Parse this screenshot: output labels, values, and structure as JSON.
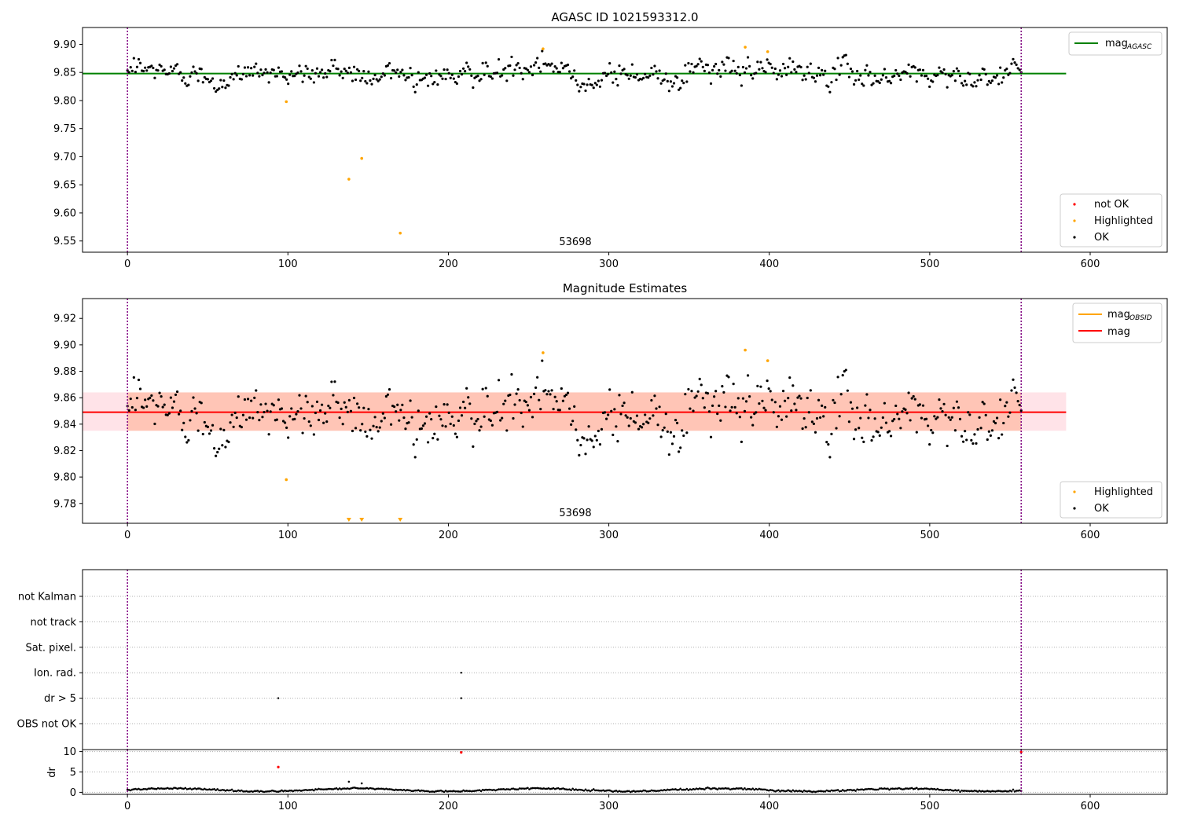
{
  "figure": {
    "chart_data": [
      {
        "type": "scatter",
        "title": "AGASC ID 1021593312.0",
        "xlim": [
          -28,
          648
        ],
        "ylim": [
          9.53,
          9.93
        ],
        "xticks": [
          0,
          100,
          200,
          300,
          400,
          500,
          600
        ],
        "xtick_labels": [
          "0",
          "100",
          "200",
          "300",
          "400",
          "500",
          "600"
        ],
        "yticks": [
          9.55,
          9.6,
          9.65,
          9.7,
          9.75,
          9.8,
          9.85,
          9.9
        ],
        "ytick_labels": [
          "9.55",
          "9.60",
          "9.65",
          "9.70",
          "9.75",
          "9.80",
          "9.85",
          "9.90"
        ],
        "vlines": [
          0,
          557
        ],
        "annotation": {
          "text": "53698",
          "x": 278,
          "y": 9.545
        },
        "hline": {
          "name": "mag_AGASC",
          "value": 9.848,
          "xrange": [
            -28,
            585
          ],
          "color": "#008000"
        },
        "ok_series": {
          "name": "OK",
          "color": "#000000",
          "n": 557,
          "x_start": 0,
          "x_end": 557,
          "center": 9.849,
          "spread": 0.016,
          "min": 9.815,
          "max": 9.888
        },
        "highlighted": {
          "name": "Highlighted",
          "color": "#ffa500",
          "x": [
            99,
            138,
            146,
            170,
            259,
            385,
            399
          ],
          "y": [
            9.798,
            9.66,
            9.697,
            9.564,
            9.892,
            9.895,
            9.887
          ]
        },
        "not_ok": {
          "name": "not OK",
          "color": "#ff0000",
          "x": [],
          "y": []
        },
        "legend_upper": [
          {
            "label": "mag",
            "sub": "AGASC",
            "color": "#008000"
          }
        ],
        "legend_lower": [
          {
            "label": "not OK",
            "color": "#ff0000"
          },
          {
            "label": "Highlighted",
            "color": "#ffa500"
          },
          {
            "label": "OK",
            "color": "#000000"
          }
        ]
      },
      {
        "type": "scatter",
        "title": "Magnitude Estimates",
        "xlim": [
          -28,
          648
        ],
        "ylim": [
          9.765,
          9.935
        ],
        "xticks": [
          0,
          100,
          200,
          300,
          400,
          500,
          600
        ],
        "xtick_labels": [
          "0",
          "100",
          "200",
          "300",
          "400",
          "500",
          "600"
        ],
        "yticks": [
          9.78,
          9.8,
          9.82,
          9.84,
          9.86,
          9.88,
          9.9,
          9.92
        ],
        "ytick_labels": [
          "9.78",
          "9.80",
          "9.82",
          "9.84",
          "9.86",
          "9.88",
          "9.90",
          "9.92"
        ],
        "vlines": [
          0,
          557
        ],
        "annotation": {
          "text": "53698",
          "x": 278,
          "y": 9.775
        },
        "mean": {
          "name": "mag",
          "value": 9.849,
          "xrange": [
            -28,
            585
          ],
          "color": "#ff0000"
        },
        "band_outer": {
          "lo": 9.835,
          "hi": 9.864,
          "color": "#ffc0cb"
        },
        "band_inner": {
          "xrange": [
            0,
            557
          ],
          "lo": 9.835,
          "hi": 9.864,
          "color": "#ffa07a"
        },
        "highlighted": {
          "name": "Highlighted",
          "color": "#ffa500",
          "x": [
            99,
            259,
            385,
            399
          ],
          "y": [
            9.798,
            9.894,
            9.896,
            9.888
          ]
        },
        "below_axis_markers": {
          "x": [
            138,
            146,
            170
          ],
          "color": "#ffa500"
        },
        "legend_upper": [
          {
            "label": "mag",
            "sub": "OBSID",
            "color": "#ffa500"
          },
          {
            "label": "mag",
            "sub": "",
            "color": "#ff0000"
          }
        ],
        "legend_lower": [
          {
            "label": "Highlighted",
            "color": "#ffa500"
          },
          {
            "label": "OK",
            "color": "#000000"
          }
        ]
      },
      {
        "type": "scatter",
        "title": "",
        "xlim": [
          -28,
          648
        ],
        "flags": [
          "not Kalman",
          "not track",
          "Sat. pixel.",
          "Ion. rad.",
          "dr > 5",
          "OBS not OK"
        ],
        "flag_points": [
          {
            "flag": "Ion. rad.",
            "x": 208
          },
          {
            "flag": "dr > 5",
            "x": 94
          },
          {
            "flag": "dr > 5",
            "x": 208
          }
        ],
        "vlines": [
          0,
          557
        ]
      },
      {
        "type": "scatter",
        "title": "",
        "ylabel": "dr",
        "xlim": [
          -28,
          648
        ],
        "ylim": [
          -0.5,
          10.5
        ],
        "yticks": [
          0,
          5,
          10
        ],
        "ytick_labels": [
          "0",
          "5",
          "10"
        ],
        "xticks": [
          0,
          100,
          200,
          300,
          400,
          500,
          600
        ],
        "xtick_labels": [
          "0",
          "100",
          "200",
          "300",
          "400",
          "500",
          "600"
        ],
        "vlines": [
          0,
          557
        ],
        "baseline": {
          "n": 557,
          "mean": 0.6,
          "spread": 0.25
        },
        "extra_points": {
          "x": [
            138,
            146
          ],
          "y": [
            2.6,
            2.2
          ]
        },
        "red_points": {
          "x": [
            94,
            208,
            557
          ],
          "y": [
            6.2,
            9.8,
            9.9
          ],
          "color": "#ff0000"
        }
      }
    ]
  }
}
